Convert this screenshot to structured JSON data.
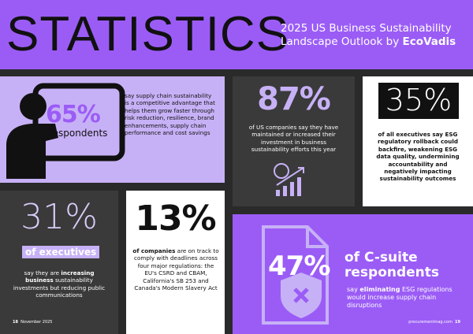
{
  "header": {
    "title": "STATISTICS",
    "subtitle_line1": "2025 US Business Sustainability",
    "subtitle_line2": "Landscape Outlook by",
    "subtitle_brand": "EcoVadis"
  },
  "stats": [
    {
      "value": "65%",
      "label": "respondents",
      "text": "say supply chain sustainability is a competitive advantage that helps them grow faster through risk reduction, resilience, brand enhancements, supply chain performance and cost savings"
    },
    {
      "value": "87%",
      "text": "of US companies say they have maintained or increased their investment in business sustainability efforts this year"
    },
    {
      "value": "35%",
      "text": "of all executives say ESG regulatory rollback could backfire, weakening ESG data quality, undermining accountability and negatively impacting sustainability outcomes"
    },
    {
      "value": "31%",
      "label": "of executives",
      "text_before": "say they are",
      "text_bold": "increasing business",
      "text_after": "sustainability investments but reducing public communications"
    },
    {
      "value": "13%",
      "text_bold": "of companies",
      "text_after": "are on track to comply with deadlines across four major regulations: the EU's CSRD and CBAM, California's SB 253 and Canada's Modern Slavery Act"
    },
    {
      "value": "47%",
      "label": "of C-suite respondents",
      "text_before": "say",
      "text_bold": "eliminating",
      "text_after": "ESG regulations would increase supply chain disruptions"
    }
  ],
  "footer": {
    "left_page": "18",
    "left_date": "November 2025",
    "right_site": "procurementmag.com",
    "right_page": "19"
  }
}
